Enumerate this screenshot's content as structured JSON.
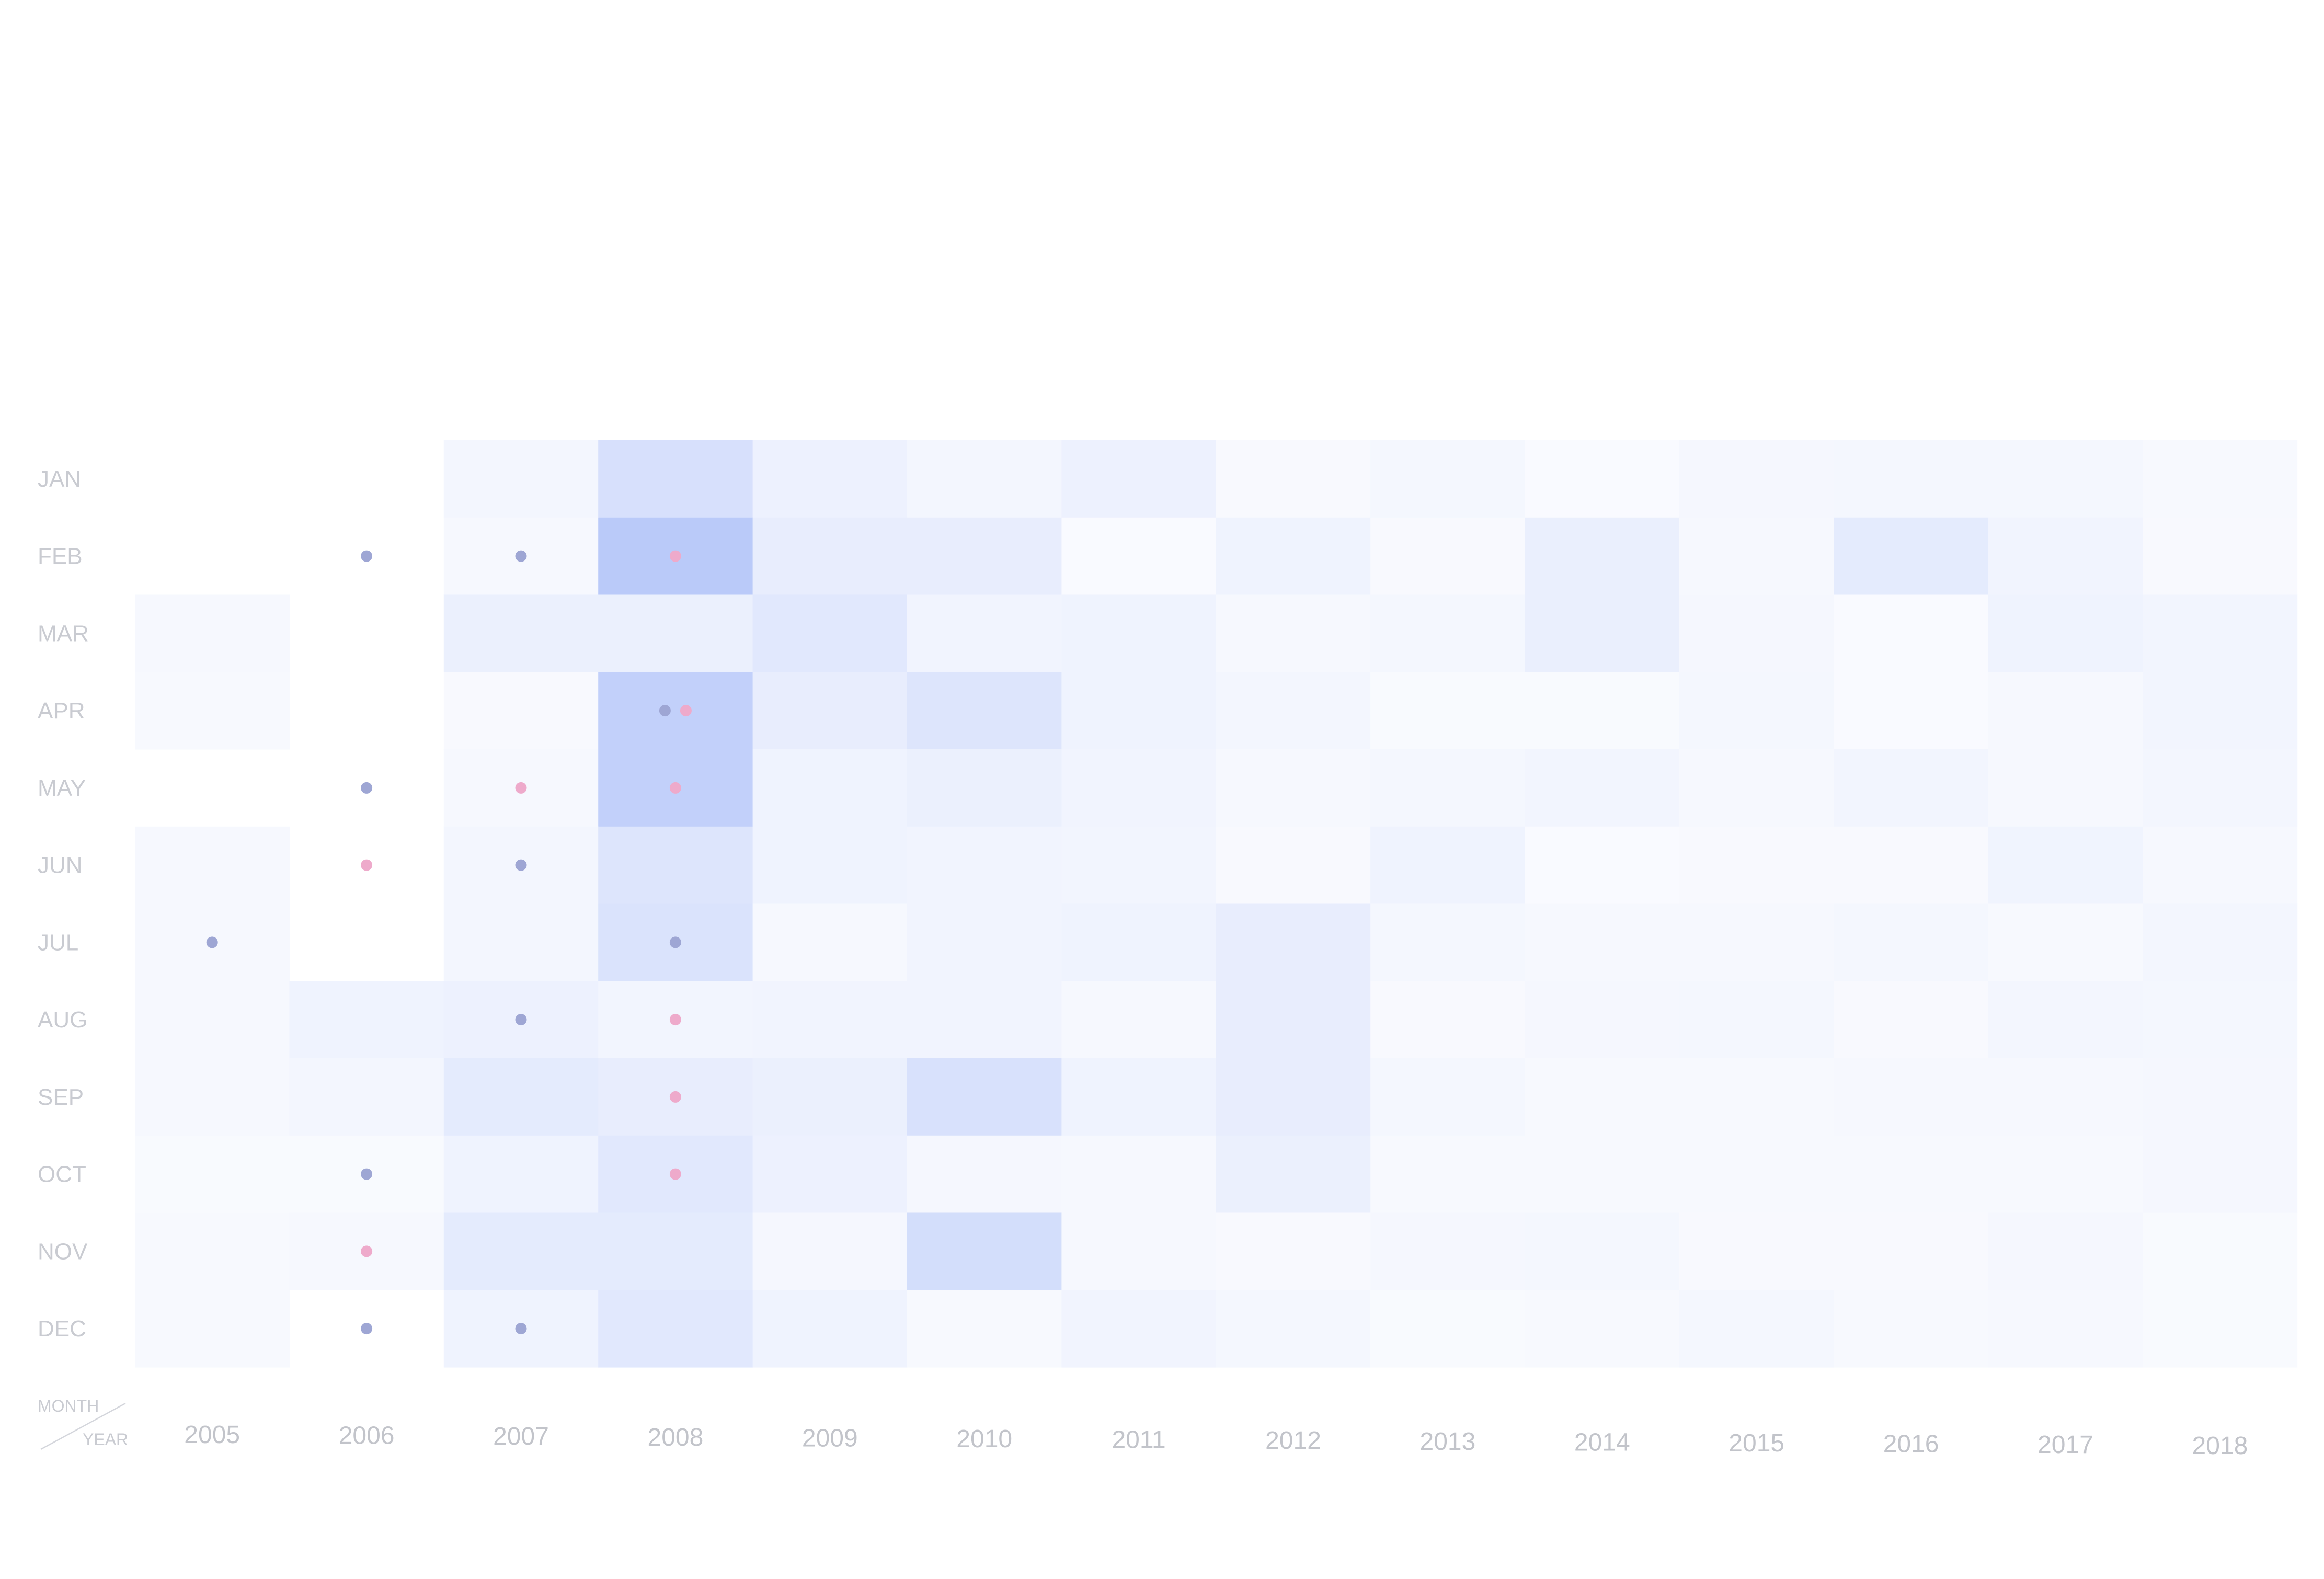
{
  "chart_data": {
    "type": "heatmap",
    "title": "",
    "corner_labels": {
      "row_axis": "MONTH",
      "column_axis": "YEAR"
    },
    "years": [
      "2005",
      "2006",
      "2007",
      "2008",
      "2009",
      "2010",
      "2011",
      "2012",
      "2013",
      "2014",
      "2015",
      "2016",
      "2017",
      "2018"
    ],
    "months": [
      "JAN",
      "FEB",
      "MAR",
      "APR",
      "MAY",
      "JUN",
      "JUL",
      "AUG",
      "SEP",
      "OCT",
      "NOV",
      "DEC"
    ],
    "intensity_scale": {
      "min": 0,
      "max": 1,
      "low_color": "#ffffff",
      "high_color": "#b4c6f9"
    },
    "intensity_note": "relative cell shading, 0 = blank, 1 = darkest",
    "values": [
      [
        null,
        null,
        0.08,
        0.5,
        0.18,
        0.09,
        0.18,
        0.02,
        0.07,
        0.0,
        0.06,
        0.07,
        0.07,
        0.03
      ],
      [
        null,
        null,
        0.05,
        0.92,
        0.25,
        0.25,
        0.0,
        0.15,
        0.02,
        0.22,
        0.04,
        0.3,
        0.12,
        0.02
      ],
      [
        0.04,
        null,
        0.2,
        0.2,
        0.35,
        0.12,
        0.15,
        0.04,
        0.07,
        0.22,
        0.06,
        0.0,
        0.15,
        0.1
      ],
      [
        0.03,
        null,
        0.02,
        0.8,
        0.25,
        0.4,
        0.15,
        0.09,
        0.01,
        0.01,
        0.07,
        0.0,
        0.05,
        0.1
      ],
      [
        null,
        null,
        0.05,
        0.8,
        0.15,
        0.2,
        0.12,
        0.04,
        0.07,
        0.1,
        0.05,
        0.1,
        0.05,
        0.09
      ],
      [
        0.04,
        null,
        0.08,
        0.4,
        0.15,
        0.12,
        0.1,
        0.02,
        0.15,
        0.0,
        0.02,
        0.02,
        0.13,
        0.05
      ],
      [
        0.04,
        null,
        0.08,
        0.45,
        0.05,
        0.12,
        0.15,
        0.25,
        0.07,
        0.05,
        0.04,
        0.07,
        0.03,
        0.08
      ],
      [
        0.04,
        0.15,
        0.18,
        0.1,
        0.12,
        0.12,
        0.05,
        0.25,
        0.02,
        0.06,
        0.07,
        0.02,
        0.08,
        0.07
      ],
      [
        0.04,
        0.08,
        0.3,
        0.25,
        0.2,
        0.48,
        0.15,
        0.25,
        0.07,
        0.03,
        0.03,
        0.04,
        0.05,
        0.06
      ],
      [
        0.01,
        0.01,
        0.15,
        0.35,
        0.18,
        0.06,
        0.05,
        0.2,
        0.03,
        0.03,
        0.03,
        0.03,
        0.03,
        0.06
      ],
      [
        0.03,
        0.05,
        0.3,
        0.3,
        0.06,
        0.55,
        0.05,
        0.02,
        0.06,
        0.07,
        0.02,
        0.02,
        0.06,
        0.01
      ],
      [
        0.03,
        null,
        0.15,
        0.35,
        0.15,
        0.03,
        0.12,
        0.07,
        0.01,
        0.03,
        0.07,
        0.03,
        0.04,
        0.01
      ]
    ],
    "markers": [
      {
        "year": "2006",
        "month": "FEB",
        "category": "blue"
      },
      {
        "year": "2007",
        "month": "FEB",
        "category": "blue"
      },
      {
        "year": "2008",
        "month": "FEB",
        "category": "pink"
      },
      {
        "year": "2008",
        "month": "APR",
        "category": "blue"
      },
      {
        "year": "2008",
        "month": "APR",
        "category": "pink"
      },
      {
        "year": "2006",
        "month": "MAY",
        "category": "blue"
      },
      {
        "year": "2007",
        "month": "MAY",
        "category": "pink"
      },
      {
        "year": "2008",
        "month": "MAY",
        "category": "pink"
      },
      {
        "year": "2006",
        "month": "JUN",
        "category": "pink"
      },
      {
        "year": "2007",
        "month": "JUN",
        "category": "blue"
      },
      {
        "year": "2005",
        "month": "JUL",
        "category": "blue"
      },
      {
        "year": "2008",
        "month": "JUL",
        "category": "blue"
      },
      {
        "year": "2007",
        "month": "AUG",
        "category": "blue"
      },
      {
        "year": "2008",
        "month": "AUG",
        "category": "pink"
      },
      {
        "year": "2008",
        "month": "SEP",
        "category": "pink"
      },
      {
        "year": "2006",
        "month": "OCT",
        "category": "blue"
      },
      {
        "year": "2008",
        "month": "OCT",
        "category": "pink"
      },
      {
        "year": "2006",
        "month": "NOV",
        "category": "pink"
      },
      {
        "year": "2006",
        "month": "DEC",
        "category": "blue"
      },
      {
        "year": "2007",
        "month": "DEC",
        "category": "blue"
      }
    ],
    "marker_colors": {
      "blue": "#9ea6d4",
      "pink": "#eeaacb"
    },
    "legend": null,
    "grid": false
  }
}
